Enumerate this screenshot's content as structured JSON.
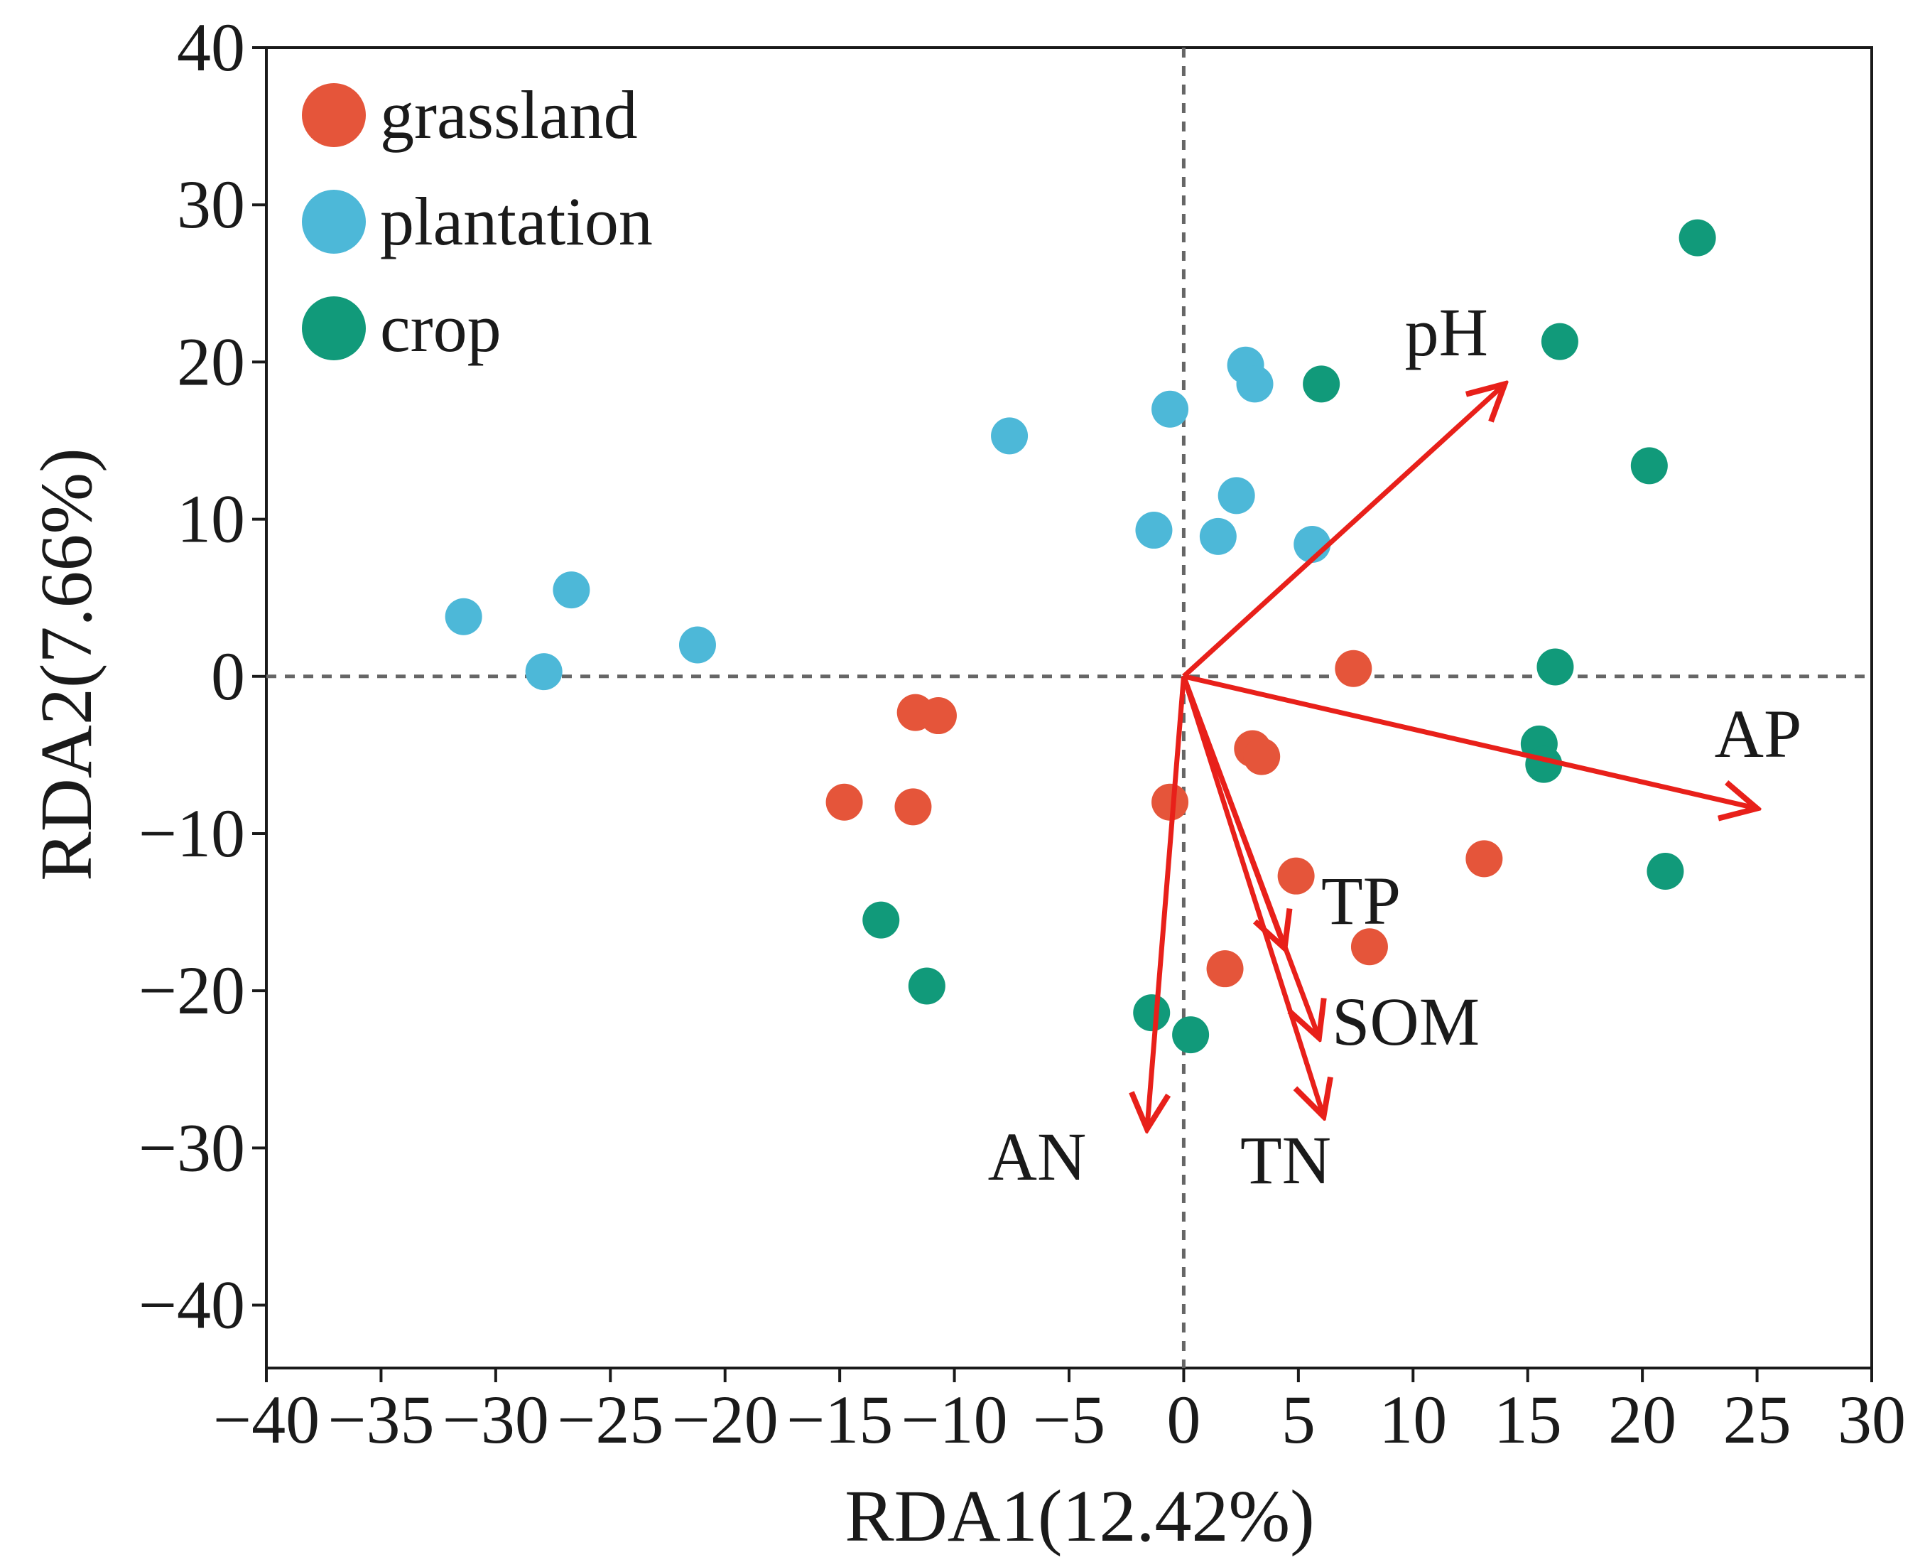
{
  "chart_data": {
    "type": "scatter",
    "xlabel": "RDA1(12.42%)",
    "ylabel": "RDA2(7.66%)",
    "xlim": [
      -40,
      30
    ],
    "ylim": [
      -44,
      40
    ],
    "x_ticks": [
      -40,
      -35,
      -30,
      -25,
      -20,
      -15,
      -10,
      -5,
      0,
      5,
      10,
      15,
      20,
      25,
      30
    ],
    "y_ticks": [
      -40,
      -30,
      -20,
      -10,
      0,
      10,
      20,
      30,
      40
    ],
    "x_tick_labels": [
      "−40",
      "−35",
      "−30",
      "−25",
      "−20",
      "−15",
      "−10",
      "−5",
      "0",
      "5",
      "10",
      "15",
      "20",
      "25",
      "30"
    ],
    "y_tick_labels": [
      "−40",
      "−30",
      "−20",
      "−10",
      "0",
      "10",
      "20",
      "30",
      "40"
    ],
    "zero_lines": true,
    "grid": false,
    "legend_position": "top-left",
    "series": [
      {
        "name": "grassland",
        "color": "#e5553a",
        "points": [
          [
            7.4,
            0.5
          ],
          [
            -11.7,
            -2.3
          ],
          [
            -10.7,
            -2.5
          ],
          [
            3.0,
            -4.6
          ],
          [
            3.4,
            -5.1
          ],
          [
            -14.8,
            -8.0
          ],
          [
            -11.8,
            -8.3
          ],
          [
            -0.6,
            -8.0
          ],
          [
            4.9,
            -12.7
          ],
          [
            13.1,
            -11.6
          ],
          [
            8.1,
            -17.2
          ],
          [
            1.8,
            -18.6
          ]
        ]
      },
      {
        "name": "plantation",
        "color": "#4db8d8",
        "points": [
          [
            -31.4,
            3.8
          ],
          [
            -26.7,
            5.5
          ],
          [
            -27.9,
            0.3
          ],
          [
            -21.2,
            2.0
          ],
          [
            -7.6,
            15.3
          ],
          [
            -0.6,
            17.0
          ],
          [
            2.7,
            19.8
          ],
          [
            3.1,
            18.6
          ],
          [
            2.3,
            11.5
          ],
          [
            -1.3,
            9.3
          ],
          [
            1.5,
            8.9
          ],
          [
            5.6,
            8.4
          ]
        ]
      },
      {
        "name": "crop",
        "color": "#119a7a",
        "points": [
          [
            22.4,
            27.9
          ],
          [
            16.4,
            21.3
          ],
          [
            6.0,
            18.6
          ],
          [
            20.3,
            13.4
          ],
          [
            16.2,
            0.6
          ],
          [
            15.5,
            -4.3
          ],
          [
            15.7,
            -5.6
          ],
          [
            21.0,
            -12.4
          ],
          [
            -13.2,
            -15.5
          ],
          [
            -11.2,
            -19.7
          ],
          [
            -1.4,
            -21.4
          ],
          [
            0.3,
            -22.8
          ]
        ]
      }
    ],
    "vectors": {
      "color": "#e8201a",
      "items": [
        {
          "name": "pH",
          "end": [
            14.0,
            18.6
          ]
        },
        {
          "name": "AP",
          "end": [
            25.0,
            -8.4
          ]
        },
        {
          "name": "TP",
          "end": [
            4.4,
            -17.3
          ]
        },
        {
          "name": "SOM",
          "end": [
            5.9,
            -23.0
          ]
        },
        {
          "name": "TN",
          "end": [
            6.1,
            -28.0
          ]
        },
        {
          "name": "AN",
          "end": [
            -1.6,
            -28.8
          ]
        }
      ]
    }
  }
}
